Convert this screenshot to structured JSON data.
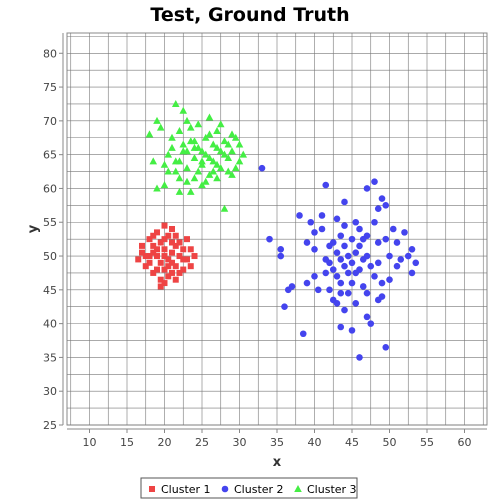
{
  "chart_data": {
    "type": "scatter",
    "title": "Test, Ground Truth",
    "xlabel": "x",
    "ylabel": "y",
    "xlim": [
      7,
      63
    ],
    "ylim": [
      25,
      83
    ],
    "x_ticks": [
      10,
      15,
      20,
      25,
      30,
      35,
      40,
      45,
      50,
      55,
      60
    ],
    "y_ticks": [
      25,
      30,
      35,
      40,
      45,
      50,
      55,
      60,
      65,
      70,
      75,
      80
    ],
    "grid": true,
    "legend_position": "bottom",
    "series": [
      {
        "name": "Cluster 1",
        "marker": "square",
        "color": "#ee4444",
        "points": [
          [
            20.0,
            50.0
          ],
          [
            19.0,
            51.0
          ],
          [
            21.0,
            49.0
          ],
          [
            18.5,
            50.5
          ],
          [
            21.5,
            51.5
          ],
          [
            20.5,
            48.5
          ],
          [
            19.5,
            52.0
          ],
          [
            22.0,
            50.0
          ],
          [
            18.0,
            49.0
          ],
          [
            20.0,
            52.5
          ],
          [
            21.0,
            47.5
          ],
          [
            19.0,
            48.0
          ],
          [
            22.5,
            51.0
          ],
          [
            17.5,
            50.0
          ],
          [
            20.5,
            53.0
          ],
          [
            23.0,
            49.5
          ],
          [
            18.5,
            47.5
          ],
          [
            21.5,
            53.0
          ],
          [
            19.5,
            46.5
          ],
          [
            22.0,
            47.5
          ],
          [
            17.0,
            51.5
          ],
          [
            23.5,
            51.0
          ],
          [
            20.0,
            46.0
          ],
          [
            18.0,
            52.5
          ],
          [
            21.0,
            54.0
          ],
          [
            22.5,
            48.0
          ],
          [
            19.0,
            53.5
          ],
          [
            17.5,
            48.5
          ],
          [
            23.0,
            52.5
          ],
          [
            20.5,
            47.0
          ],
          [
            18.5,
            53.0
          ],
          [
            21.5,
            46.5
          ],
          [
            16.5,
            49.5
          ],
          [
            23.5,
            48.5
          ],
          [
            19.5,
            49.0
          ],
          [
            20.0,
            51.0
          ],
          [
            21.0,
            50.5
          ],
          [
            18.0,
            50.0
          ],
          [
            22.0,
            52.0
          ],
          [
            19.0,
            50.0
          ],
          [
            20.5,
            49.5
          ],
          [
            21.5,
            48.5
          ],
          [
            18.5,
            51.5
          ],
          [
            22.5,
            49.5
          ],
          [
            17.0,
            50.5
          ],
          [
            24.0,
            50.0
          ],
          [
            20.0,
            54.5
          ],
          [
            19.5,
            45.5
          ],
          [
            21.0,
            52.0
          ],
          [
            20.0,
            48.0
          ]
        ]
      },
      {
        "name": "Cluster 2",
        "marker": "circle",
        "color": "#4444ee",
        "points": [
          [
            33.0,
            63.0
          ],
          [
            34.0,
            52.5
          ],
          [
            35.5,
            51.0
          ],
          [
            35.5,
            50.0
          ],
          [
            36.0,
            42.5
          ],
          [
            36.5,
            45.0
          ],
          [
            38.0,
            56.0
          ],
          [
            38.5,
            38.5
          ],
          [
            39.0,
            52.0
          ],
          [
            39.5,
            55.0
          ],
          [
            40.0,
            53.5
          ],
          [
            40.0,
            51.0
          ],
          [
            40.0,
            47.0
          ],
          [
            40.5,
            45.0
          ],
          [
            41.0,
            56.0
          ],
          [
            41.0,
            54.0
          ],
          [
            41.5,
            60.5
          ],
          [
            41.5,
            49.5
          ],
          [
            41.5,
            47.5
          ],
          [
            42.0,
            51.5
          ],
          [
            42.0,
            49.0
          ],
          [
            42.0,
            45.0
          ],
          [
            42.5,
            52.0
          ],
          [
            42.5,
            48.0
          ],
          [
            42.5,
            43.5
          ],
          [
            43.0,
            55.5
          ],
          [
            43.0,
            50.5
          ],
          [
            43.0,
            47.0
          ],
          [
            43.0,
            43.0
          ],
          [
            43.5,
            53.0
          ],
          [
            43.5,
            49.5
          ],
          [
            43.5,
            46.0
          ],
          [
            43.5,
            44.5
          ],
          [
            43.5,
            39.5
          ],
          [
            44.0,
            58.0
          ],
          [
            44.0,
            54.5
          ],
          [
            44.0,
            51.5
          ],
          [
            44.0,
            48.5
          ],
          [
            44.0,
            42.0
          ],
          [
            44.5,
            50.0
          ],
          [
            44.5,
            47.5
          ],
          [
            44.5,
            44.5
          ],
          [
            45.0,
            52.5
          ],
          [
            45.0,
            49.0
          ],
          [
            45.0,
            46.0
          ],
          [
            45.0,
            39.0
          ],
          [
            45.5,
            55.0
          ],
          [
            45.5,
            50.5
          ],
          [
            45.5,
            47.5
          ],
          [
            45.5,
            43.0
          ],
          [
            46.0,
            54.0
          ],
          [
            46.0,
            51.5
          ],
          [
            46.0,
            48.0
          ],
          [
            46.0,
            35.0
          ],
          [
            46.5,
            52.5
          ],
          [
            46.5,
            49.5
          ],
          [
            46.5,
            45.5
          ],
          [
            47.0,
            60.0
          ],
          [
            47.0,
            53.0
          ],
          [
            47.0,
            50.0
          ],
          [
            47.0,
            44.5
          ],
          [
            47.5,
            48.5
          ],
          [
            47.5,
            40.0
          ],
          [
            48.0,
            61.0
          ],
          [
            48.0,
            55.0
          ],
          [
            48.0,
            47.0
          ],
          [
            48.5,
            57.0
          ],
          [
            48.5,
            52.0
          ],
          [
            48.5,
            49.0
          ],
          [
            48.5,
            43.5
          ],
          [
            49.0,
            58.5
          ],
          [
            49.0,
            46.0
          ],
          [
            49.5,
            57.5
          ],
          [
            49.5,
            52.5
          ],
          [
            49.5,
            36.5
          ],
          [
            50.0,
            50.0
          ],
          [
            50.0,
            46.5
          ],
          [
            50.5,
            54.0
          ],
          [
            51.0,
            52.0
          ],
          [
            51.0,
            48.5
          ],
          [
            51.5,
            49.5
          ],
          [
            52.0,
            53.5
          ],
          [
            52.5,
            50.0
          ],
          [
            53.0,
            51.0
          ],
          [
            53.0,
            47.5
          ],
          [
            53.5,
            49.0
          ],
          [
            37.0,
            45.5
          ],
          [
            39.0,
            46.0
          ],
          [
            47.0,
            41.0
          ],
          [
            49.0,
            44.0
          ]
        ]
      },
      {
        "name": "Cluster 3",
        "marker": "triangle",
        "color": "#44ee44",
        "points": [
          [
            19.0,
            70.0
          ],
          [
            19.5,
            69.0
          ],
          [
            21.5,
            72.5
          ],
          [
            22.5,
            71.5
          ],
          [
            18.0,
            68.0
          ],
          [
            18.5,
            64.0
          ],
          [
            19.0,
            60.0
          ],
          [
            20.0,
            60.5
          ],
          [
            20.5,
            62.5
          ],
          [
            21.0,
            66.0
          ],
          [
            21.5,
            64.0
          ],
          [
            22.0,
            68.5
          ],
          [
            22.0,
            61.5
          ],
          [
            22.5,
            65.5
          ],
          [
            23.0,
            70.0
          ],
          [
            23.0,
            63.0
          ],
          [
            23.5,
            67.0
          ],
          [
            23.5,
            59.5
          ],
          [
            24.0,
            64.5
          ],
          [
            24.0,
            61.5
          ],
          [
            24.5,
            69.5
          ],
          [
            24.5,
            66.0
          ],
          [
            25.0,
            63.5
          ],
          [
            25.0,
            60.5
          ],
          [
            25.5,
            67.5
          ],
          [
            25.5,
            65.0
          ],
          [
            26.0,
            70.5
          ],
          [
            26.0,
            62.0
          ],
          [
            26.5,
            66.5
          ],
          [
            26.5,
            64.0
          ],
          [
            27.0,
            68.5
          ],
          [
            27.0,
            61.5
          ],
          [
            27.5,
            65.5
          ],
          [
            27.5,
            63.0
          ],
          [
            28.0,
            67.0
          ],
          [
            28.0,
            57.0
          ],
          [
            28.5,
            64.5
          ],
          [
            28.5,
            62.5
          ],
          [
            29.0,
            68.0
          ],
          [
            29.0,
            65.5
          ],
          [
            29.5,
            63.0
          ],
          [
            30.0,
            66.5
          ],
          [
            30.0,
            64.0
          ],
          [
            30.5,
            65.0
          ],
          [
            21.0,
            67.5
          ],
          [
            22.0,
            64.0
          ],
          [
            23.0,
            65.5
          ],
          [
            24.0,
            67.0
          ],
          [
            25.0,
            65.5
          ],
          [
            26.0,
            64.5
          ],
          [
            27.0,
            66.0
          ],
          [
            28.0,
            65.0
          ],
          [
            29.0,
            62.0
          ],
          [
            24.5,
            62.5
          ],
          [
            26.0,
            68.0
          ],
          [
            23.5,
            69.0
          ],
          [
            21.5,
            62.5
          ],
          [
            25.5,
            61.0
          ],
          [
            27.5,
            69.5
          ],
          [
            20.5,
            65.0
          ],
          [
            22.5,
            66.5
          ],
          [
            24.0,
            66.0
          ],
          [
            25.0,
            64.0
          ],
          [
            26.5,
            62.5
          ],
          [
            28.5,
            66.5
          ],
          [
            23.0,
            61.0
          ],
          [
            27.0,
            63.5
          ],
          [
            20.0,
            63.5
          ],
          [
            29.5,
            67.5
          ],
          [
            22.0,
            59.5
          ]
        ]
      }
    ]
  }
}
